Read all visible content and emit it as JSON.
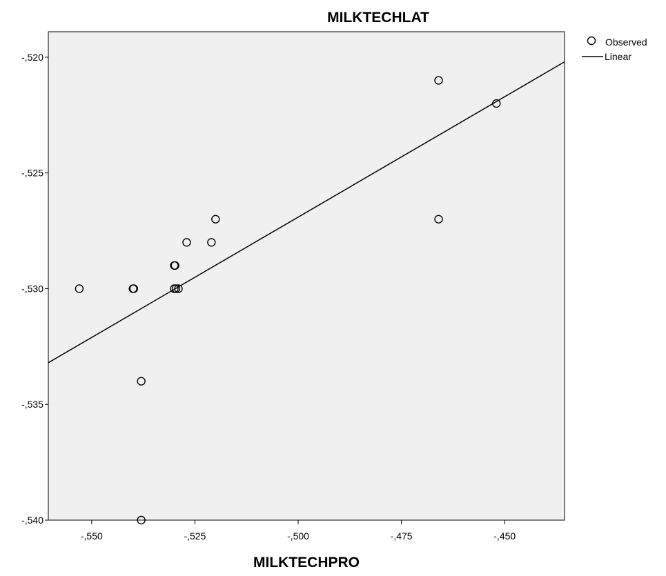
{
  "chart_data": {
    "type": "scatter",
    "title": "MILKTECHLAT",
    "xlabel": "MILKTECHPRO",
    "ylabel": "",
    "xlim": [
      -0.5605,
      -0.4355
    ],
    "ylim": [
      -0.54,
      -0.5189
    ],
    "x_ticks": [
      {
        "value": -0.55,
        "label": "-,550"
      },
      {
        "value": -0.525,
        "label": "-,525"
      },
      {
        "value": -0.5,
        "label": "-,500"
      },
      {
        "value": -0.475,
        "label": "-,475"
      },
      {
        "value": -0.45,
        "label": "-,450"
      }
    ],
    "y_ticks": [
      {
        "value": -0.52,
        "label": "-,520"
      },
      {
        "value": -0.525,
        "label": "-,525"
      },
      {
        "value": -0.53,
        "label": "-,530"
      },
      {
        "value": -0.535,
        "label": "-,535"
      },
      {
        "value": -0.54,
        "label": "-,540"
      }
    ],
    "legend": {
      "position": "top-right",
      "entries": [
        {
          "label": "Observed",
          "marker": "circle"
        },
        {
          "label": "Linear",
          "marker": "line"
        }
      ]
    },
    "series": [
      {
        "name": "Observed",
        "type": "scatter",
        "points": [
          {
            "x": -0.553,
            "y": -0.53
          },
          {
            "x": -0.54,
            "y": -0.53
          },
          {
            "x": -0.5398,
            "y": -0.53
          },
          {
            "x": -0.538,
            "y": -0.534
          },
          {
            "x": -0.538,
            "y": -0.54
          },
          {
            "x": -0.53,
            "y": -0.529
          },
          {
            "x": -0.5298,
            "y": -0.529
          },
          {
            "x": -0.53,
            "y": -0.53
          },
          {
            "x": -0.5296,
            "y": -0.53
          },
          {
            "x": -0.529,
            "y": -0.53
          },
          {
            "x": -0.527,
            "y": -0.528
          },
          {
            "x": -0.521,
            "y": -0.528
          },
          {
            "x": -0.52,
            "y": -0.527
          },
          {
            "x": -0.466,
            "y": -0.521
          },
          {
            "x": -0.466,
            "y": -0.527
          },
          {
            "x": -0.452,
            "y": -0.522
          }
        ]
      },
      {
        "name": "Linear",
        "type": "line",
        "points": [
          {
            "x": -0.5605,
            "y": -0.5332
          },
          {
            "x": -0.4355,
            "y": -0.5202
          }
        ]
      }
    ],
    "grid": false,
    "colors": {
      "plot_background": "#f0f0f0",
      "axis": "#000000",
      "marker_stroke": "#000000",
      "line": "#000000"
    }
  }
}
